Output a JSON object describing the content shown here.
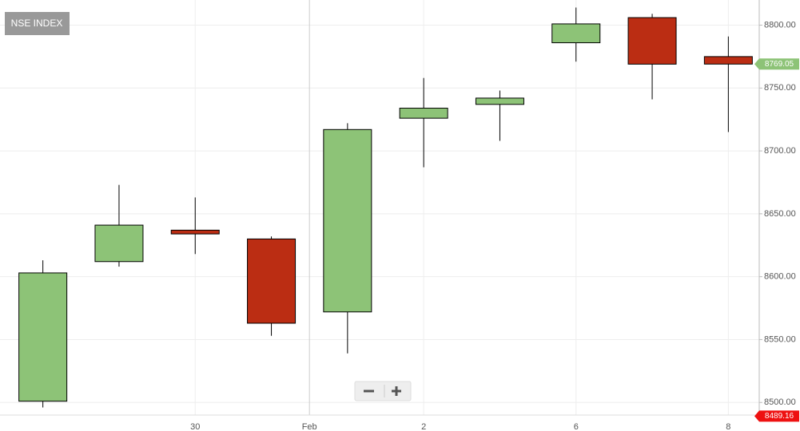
{
  "chart_data": {
    "type": "candlestick",
    "title": "NSE INDEX",
    "categories": [
      null,
      null,
      "30",
      null,
      "Feb",
      "2",
      null,
      "6",
      null,
      "8"
    ],
    "open": [
      8501,
      8612,
      8637,
      8630,
      8572,
      8726,
      8737,
      8786,
      8806,
      8775
    ],
    "high": [
      8613,
      8673,
      8663,
      8632,
      8722,
      8758,
      8748,
      8814,
      8809,
      8791
    ],
    "low": [
      8496,
      8608,
      8618,
      8553,
      8539,
      8687,
      8708,
      8771,
      8741,
      8715
    ],
    "close": [
      8603,
      8641,
      8634,
      8563,
      8717,
      8734,
      8742,
      8801,
      8769,
      8769.05
    ],
    "up_color": "#8dc377",
    "down_color": "#bb2d13",
    "ylim": [
      8490,
      8820
    ],
    "yticks": [
      {
        "value": 8500,
        "label": "8500.00"
      },
      {
        "value": 8550,
        "label": "8550.00"
      },
      {
        "value": 8600,
        "label": "8600.00"
      },
      {
        "value": 8650,
        "label": "8650.00"
      },
      {
        "value": 8700,
        "label": "8700.00"
      },
      {
        "value": 8750,
        "label": "8750.00"
      },
      {
        "value": 8800,
        "label": "8800.00"
      }
    ],
    "grid": true,
    "price_tags": [
      {
        "value": 8769.05,
        "color": "#8dc377"
      },
      {
        "value": 8489.16,
        "color": "#ee1111"
      }
    ]
  }
}
